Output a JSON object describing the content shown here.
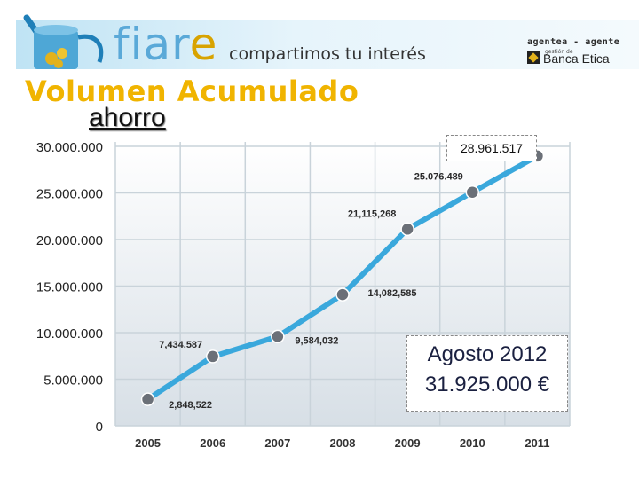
{
  "header": {
    "logo_text_main": "fiar",
    "logo_text_end": "e",
    "tagline": "compartimos tu interés",
    "partner_role": "agentea - agente",
    "partner_small": "gestión de",
    "partner_name": "Banca Etica"
  },
  "title": "Volumen Acumulado",
  "subtitle": "ahorro",
  "callout_value": "28.961.517",
  "note": {
    "line1": "Agosto 2012",
    "line2": "31.925.000 €"
  },
  "colors": {
    "line": "#3aa8dc",
    "marker": "#6b7078",
    "title": "#f0b400",
    "grid": "#c9d3da"
  },
  "chart_data": {
    "type": "line",
    "categories": [
      "2005",
      "2006",
      "2007",
      "2008",
      "2009",
      "2010",
      "2011"
    ],
    "values": [
      2848522,
      7434587,
      9584032,
      14082585,
      21115268,
      25076489,
      28961517
    ],
    "data_labels": [
      "2,848,522",
      "7,434,587",
      "9,584,032",
      "14,082,585",
      "21,115,268",
      "25.076.489",
      ""
    ],
    "ylim": [
      0,
      30000000
    ],
    "yticks": [
      0,
      5000000,
      10000000,
      15000000,
      20000000,
      25000000,
      30000000
    ],
    "ytick_labels": [
      "0",
      "5.000.000",
      "10.000.000",
      "15.000.000",
      "20.000.000",
      "25.000.000",
      "30.000.000"
    ],
    "grid": true
  }
}
